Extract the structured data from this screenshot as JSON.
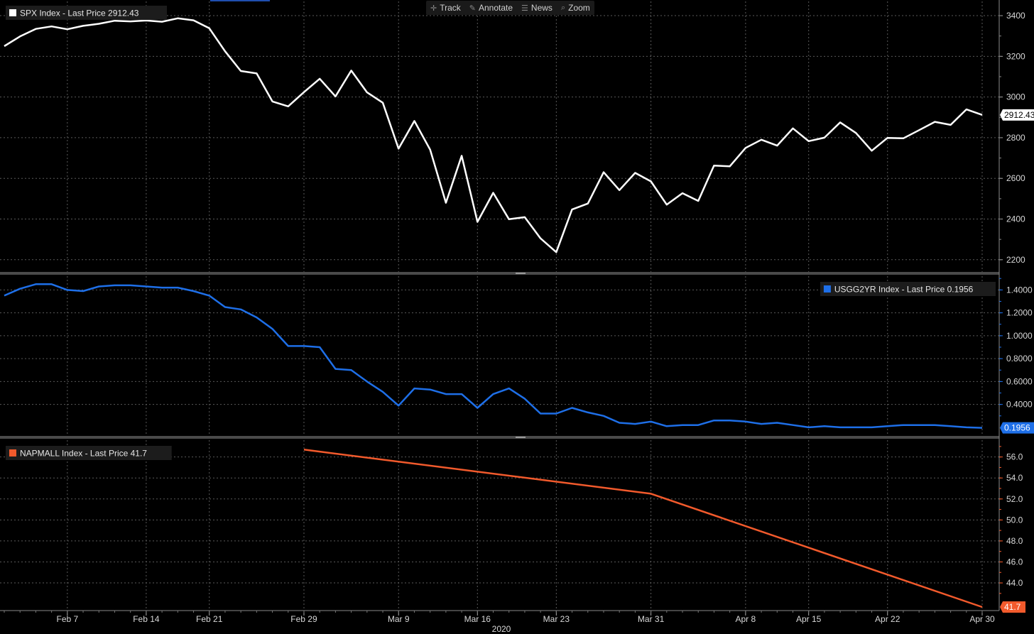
{
  "toolbar": {
    "items": [
      {
        "label": "Track",
        "icon": "crosshair-icon"
      },
      {
        "label": "Annotate",
        "icon": "pencil-icon"
      },
      {
        "label": "News",
        "icon": "news-icon"
      },
      {
        "label": "Zoom",
        "icon": "magnifier-icon"
      }
    ]
  },
  "colors": {
    "background": "#000000",
    "spx": "#ffffff",
    "usgg2yr": "#1e6fe8",
    "napmall": "#f25a2c",
    "grid": "#5a5a5a",
    "separator": "#4a4a4a"
  },
  "x_axis": {
    "dates": [
      "Feb 7",
      "Feb 14",
      "Feb 21",
      "Feb 29",
      "Mar 9",
      "Mar 16",
      "Mar 23",
      "Mar 31",
      "Apr 8",
      "Apr 15",
      "Apr 22",
      "Apr 30"
    ],
    "year": "2020"
  },
  "chart_data": [
    {
      "type": "line",
      "legend": "SPX Index - Last Price 2912.43",
      "last_value_label": "2912.43",
      "y_ticks": [
        "3400",
        "3200",
        "3000",
        "2800",
        "2600",
        "2400",
        "2200"
      ],
      "ylim": [
        2140,
        3470
      ],
      "series": [
        {
          "name": "SPX Index",
          "values": [
            3250,
            3298,
            3335,
            3347,
            3333,
            3350,
            3360,
            3375,
            3372,
            3376,
            3370,
            3387,
            3377,
            3338,
            3225,
            3128,
            3116,
            2978,
            2954,
            3024,
            3090,
            3003,
            3130,
            3023,
            2972,
            2746,
            2882,
            2741,
            2480,
            2711,
            2386,
            2529,
            2399,
            2409,
            2305,
            2237,
            2447,
            2476,
            2630,
            2542,
            2627,
            2585,
            2471,
            2527,
            2489,
            2663,
            2659,
            2750,
            2790,
            2761,
            2846,
            2783,
            2800,
            2875,
            2823,
            2736,
            2799,
            2797,
            2837,
            2878,
            2863,
            2939,
            2912
          ]
        }
      ]
    },
    {
      "type": "line",
      "legend": "USGG2YR Index - Last Price 0.1956",
      "last_value_label": "0.1956",
      "y_ticks": [
        "1.4000",
        "1.2000",
        "1.0000",
        "0.8000",
        "0.6000",
        "0.4000"
      ],
      "ylim": [
        0.125,
        1.52
      ],
      "series": [
        {
          "name": "USGG2YR Index",
          "values": [
            1.35,
            1.41,
            1.45,
            1.45,
            1.4,
            1.39,
            1.43,
            1.44,
            1.44,
            1.43,
            1.42,
            1.42,
            1.39,
            1.35,
            1.25,
            1.23,
            1.16,
            1.06,
            0.91,
            0.91,
            0.9,
            0.71,
            0.7,
            0.6,
            0.51,
            0.39,
            0.54,
            0.53,
            0.49,
            0.49,
            0.37,
            0.49,
            0.54,
            0.45,
            0.32,
            0.32,
            0.37,
            0.33,
            0.3,
            0.24,
            0.23,
            0.25,
            0.21,
            0.22,
            0.22,
            0.26,
            0.26,
            0.25,
            0.23,
            0.24,
            0.22,
            0.2,
            0.21,
            0.2,
            0.2,
            0.2,
            0.21,
            0.22,
            0.22,
            0.22,
            0.21,
            0.2,
            0.1956
          ]
        }
      ]
    },
    {
      "type": "line",
      "legend": "NAPMALL Index - Last Price 41.7",
      "last_value_label": "41.7",
      "y_ticks": [
        "56.0",
        "54.0",
        "52.0",
        "50.0",
        "48.0",
        "46.0",
        "44.0"
      ],
      "ylim": [
        41.5,
        57.6
      ],
      "series": [
        {
          "name": "NAPMALL Index",
          "points": [
            {
              "x": 19,
              "y": 56.7
            },
            {
              "x": 41,
              "y": 52.5
            },
            {
              "x": 62,
              "y": 41.7
            }
          ]
        }
      ]
    }
  ]
}
